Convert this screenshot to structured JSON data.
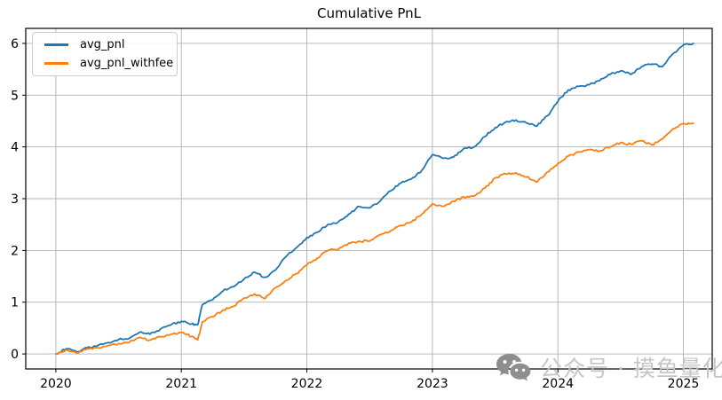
{
  "figure": {
    "watermark": {
      "icon": "wechat-icon",
      "icon_color": "#8e8e8e",
      "text": "公众号 · 摸鱼量化",
      "text_color": "#c6c6c6"
    }
  },
  "chart_data": {
    "type": "line",
    "title": "Cumulative PnL",
    "xlabel": "",
    "ylabel": "",
    "grid": true,
    "legend_position": "upper left",
    "xlim": [
      2019.76,
      2025.23
    ],
    "ylim": [
      -0.29,
      6.29
    ],
    "xticks": [
      2020,
      2021,
      2022,
      2023,
      2024,
      2025
    ],
    "yticks": [
      0,
      1,
      2,
      3,
      4,
      5,
      6
    ],
    "grid_color": "#b0b0b0",
    "x": [
      2020.0,
      2020.083,
      2020.167,
      2020.25,
      2020.333,
      2020.417,
      2020.5,
      2020.583,
      2020.667,
      2020.75,
      2020.833,
      2020.917,
      2021.0,
      2021.083,
      2021.13,
      2021.167,
      2021.25,
      2021.333,
      2021.417,
      2021.5,
      2021.583,
      2021.667,
      2021.75,
      2021.833,
      2021.917,
      2022.0,
      2022.083,
      2022.167,
      2022.25,
      2022.333,
      2022.417,
      2022.5,
      2022.583,
      2022.667,
      2022.75,
      2022.833,
      2022.917,
      2023.0,
      2023.083,
      2023.167,
      2023.25,
      2023.333,
      2023.417,
      2023.5,
      2023.583,
      2023.667,
      2023.75,
      2023.833,
      2023.917,
      2024.0,
      2024.083,
      2024.167,
      2024.25,
      2024.333,
      2024.417,
      2024.5,
      2024.583,
      2024.667,
      2024.75,
      2024.833,
      2024.917,
      2025.0,
      2025.08
    ],
    "series": [
      {
        "name": "avg_pnl",
        "color": "#1f77b4",
        "values": [
          0.0,
          0.1,
          0.04,
          0.12,
          0.16,
          0.22,
          0.28,
          0.3,
          0.42,
          0.38,
          0.48,
          0.56,
          0.63,
          0.58,
          0.56,
          0.95,
          1.05,
          1.22,
          1.3,
          1.45,
          1.58,
          1.48,
          1.62,
          1.88,
          2.05,
          2.25,
          2.35,
          2.5,
          2.55,
          2.7,
          2.85,
          2.82,
          2.95,
          3.15,
          3.3,
          3.38,
          3.55,
          3.85,
          3.78,
          3.8,
          3.97,
          4.0,
          4.2,
          4.37,
          4.48,
          4.52,
          4.46,
          4.4,
          4.6,
          4.88,
          5.1,
          5.17,
          5.2,
          5.28,
          5.4,
          5.47,
          5.4,
          5.55,
          5.6,
          5.55,
          5.8,
          5.97,
          6.0
        ]
      },
      {
        "name": "avg_pnl_withfee",
        "color": "#ff7f0e",
        "values": [
          0.0,
          0.08,
          0.02,
          0.1,
          0.12,
          0.16,
          0.2,
          0.22,
          0.32,
          0.27,
          0.33,
          0.38,
          0.41,
          0.34,
          0.27,
          0.62,
          0.72,
          0.85,
          0.92,
          1.08,
          1.16,
          1.07,
          1.28,
          1.42,
          1.55,
          1.72,
          1.85,
          2.0,
          2.02,
          2.14,
          2.18,
          2.18,
          2.3,
          2.38,
          2.48,
          2.55,
          2.7,
          2.9,
          2.85,
          2.95,
          3.03,
          3.05,
          3.2,
          3.4,
          3.48,
          3.5,
          3.42,
          3.32,
          3.52,
          3.68,
          3.82,
          3.9,
          3.95,
          3.92,
          4.0,
          4.08,
          4.05,
          4.12,
          4.04,
          4.15,
          4.35,
          4.45,
          4.46
        ]
      }
    ]
  }
}
